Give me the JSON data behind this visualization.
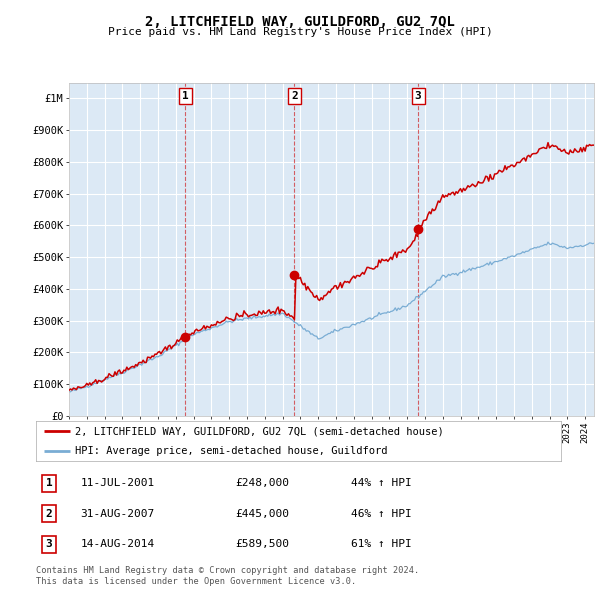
{
  "title": "2, LITCHFIELD WAY, GUILDFORD, GU2 7QL",
  "subtitle": "Price paid vs. HM Land Registry's House Price Index (HPI)",
  "legend_property": "2, LITCHFIELD WAY, GUILDFORD, GU2 7QL (semi-detached house)",
  "legend_hpi": "HPI: Average price, semi-detached house, Guildford",
  "sale1_date": "11-JUL-2001",
  "sale1_price": "£248,000",
  "sale1_hpi": "44% ↑ HPI",
  "sale1_year": 2001.53,
  "sale1_value": 248000,
  "sale2_date": "31-AUG-2007",
  "sale2_price": "£445,000",
  "sale2_hpi": "46% ↑ HPI",
  "sale2_year": 2007.67,
  "sale2_value": 445000,
  "sale3_date": "14-AUG-2014",
  "sale3_price": "£589,500",
  "sale3_hpi": "61% ↑ HPI",
  "sale3_year": 2014.62,
  "sale3_value": 589500,
  "background_color": "#dce9f5",
  "red_line_color": "#cc0000",
  "blue_line_color": "#7aadd4",
  "grid_color": "#ffffff",
  "ylim_max": 1050000,
  "ylim_min": 0,
  "xlim_min": 1995.0,
  "xlim_max": 2024.5,
  "footer": "Contains HM Land Registry data © Crown copyright and database right 2024.\nThis data is licensed under the Open Government Licence v3.0.",
  "yticks": [
    0,
    100000,
    200000,
    300000,
    400000,
    500000,
    600000,
    700000,
    800000,
    900000,
    1000000
  ],
  "ytick_labels": [
    "£0",
    "£100K",
    "£200K",
    "£300K",
    "£400K",
    "£500K",
    "£600K",
    "£700K",
    "£800K",
    "£900K",
    "£1M"
  ]
}
